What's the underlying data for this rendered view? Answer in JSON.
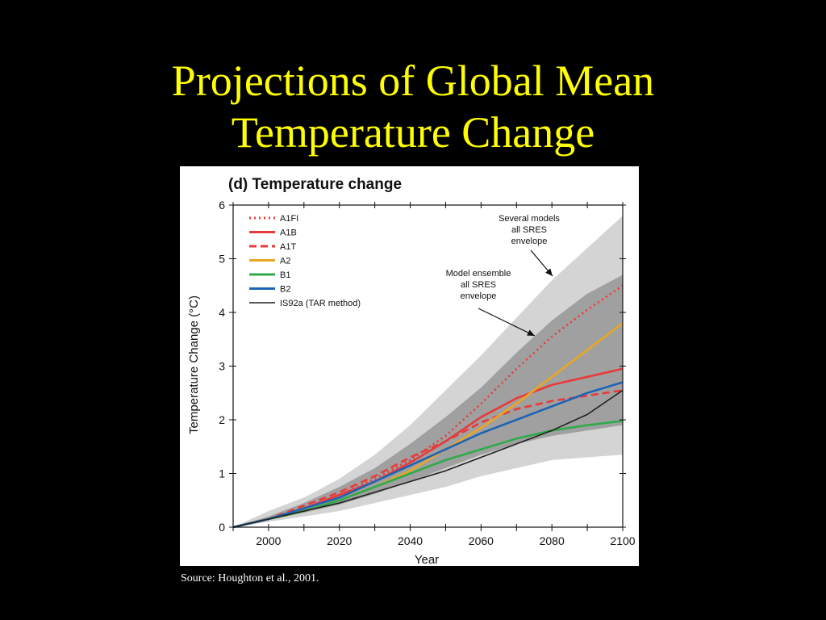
{
  "slide": {
    "title_line1": "Projections of Global Mean",
    "title_line2": "Temperature Change",
    "source": "Source: Houghton et al., 2001.",
    "title_color": "#ffff00",
    "background": "#000000"
  },
  "chart_data": {
    "type": "line",
    "title": "(d) Temperature change",
    "xlabel": "Year",
    "ylabel": "Temperature Change (°C)",
    "xlim": [
      1990,
      2100
    ],
    "ylim": [
      0,
      6
    ],
    "xticks": [
      2000,
      2020,
      2040,
      2060,
      2080,
      2100
    ],
    "yticks": [
      0,
      1,
      2,
      3,
      4,
      5,
      6
    ],
    "grid": false,
    "legend_position": "top-left",
    "x": [
      1990,
      2000,
      2010,
      2020,
      2030,
      2040,
      2050,
      2060,
      2070,
      2080,
      2090,
      2100
    ],
    "series": [
      {
        "name": "A1FI",
        "color": "#e83a3a",
        "style": "dotted",
        "values": [
          0,
          0.15,
          0.35,
          0.6,
          0.9,
          1.25,
          1.7,
          2.3,
          2.95,
          3.55,
          4.05,
          4.5
        ]
      },
      {
        "name": "A1B",
        "color": "#e83a3a",
        "style": "solid",
        "values": [
          0,
          0.15,
          0.35,
          0.6,
          0.85,
          1.2,
          1.6,
          2.05,
          2.4,
          2.65,
          2.8,
          2.95
        ]
      },
      {
        "name": "A1T",
        "color": "#e83a3a",
        "style": "dashed",
        "values": [
          0,
          0.15,
          0.4,
          0.65,
          0.95,
          1.3,
          1.6,
          1.95,
          2.2,
          2.35,
          2.45,
          2.55
        ]
      },
      {
        "name": "A2",
        "color": "#e8a624",
        "style": "solid",
        "values": [
          0,
          0.15,
          0.3,
          0.5,
          0.75,
          1.05,
          1.45,
          1.85,
          2.3,
          2.8,
          3.3,
          3.8
        ]
      },
      {
        "name": "B1",
        "color": "#2eaa4a",
        "style": "solid",
        "values": [
          0,
          0.15,
          0.3,
          0.5,
          0.75,
          1.0,
          1.25,
          1.45,
          1.65,
          1.8,
          1.9,
          1.98
        ]
      },
      {
        "name": "B2",
        "color": "#1e64b4",
        "style": "solid",
        "values": [
          0,
          0.15,
          0.35,
          0.55,
          0.85,
          1.15,
          1.45,
          1.75,
          2.0,
          2.25,
          2.5,
          2.7
        ]
      },
      {
        "name": "IS92a (TAR method)",
        "color": "#222222",
        "style": "solid",
        "values": [
          0,
          0.15,
          0.3,
          0.45,
          0.65,
          0.85,
          1.05,
          1.3,
          1.55,
          1.8,
          2.1,
          2.55
        ]
      }
    ],
    "envelopes": [
      {
        "label": "Several models all SRES envelope",
        "color": "#d4d4d4",
        "x": [
          1990,
          2000,
          2010,
          2020,
          2030,
          2040,
          2050,
          2060,
          2070,
          2080,
          2090,
          2100
        ],
        "lower": [
          0,
          0.1,
          0.2,
          0.3,
          0.45,
          0.6,
          0.75,
          0.95,
          1.1,
          1.25,
          1.3,
          1.35
        ],
        "upper": [
          0,
          0.3,
          0.55,
          0.9,
          1.35,
          1.9,
          2.55,
          3.2,
          3.9,
          4.6,
          5.2,
          5.8
        ]
      },
      {
        "label": "Model ensemble all SRES envelope",
        "color": "#a0a0a0",
        "x": [
          1990,
          2000,
          2010,
          2020,
          2030,
          2040,
          2050,
          2060,
          2070,
          2080,
          2090,
          2100
        ],
        "lower": [
          0,
          0.13,
          0.27,
          0.42,
          0.62,
          0.85,
          1.1,
          1.35,
          1.55,
          1.7,
          1.8,
          1.9
        ],
        "upper": [
          0,
          0.2,
          0.45,
          0.75,
          1.1,
          1.55,
          2.05,
          2.6,
          3.25,
          3.85,
          4.35,
          4.7
        ]
      }
    ],
    "annotations": [
      {
        "lines": [
          "Several models",
          "all SRES",
          "envelope"
        ]
      },
      {
        "lines": [
          "Model ensemble",
          "all SRES",
          "envelope"
        ]
      }
    ]
  }
}
